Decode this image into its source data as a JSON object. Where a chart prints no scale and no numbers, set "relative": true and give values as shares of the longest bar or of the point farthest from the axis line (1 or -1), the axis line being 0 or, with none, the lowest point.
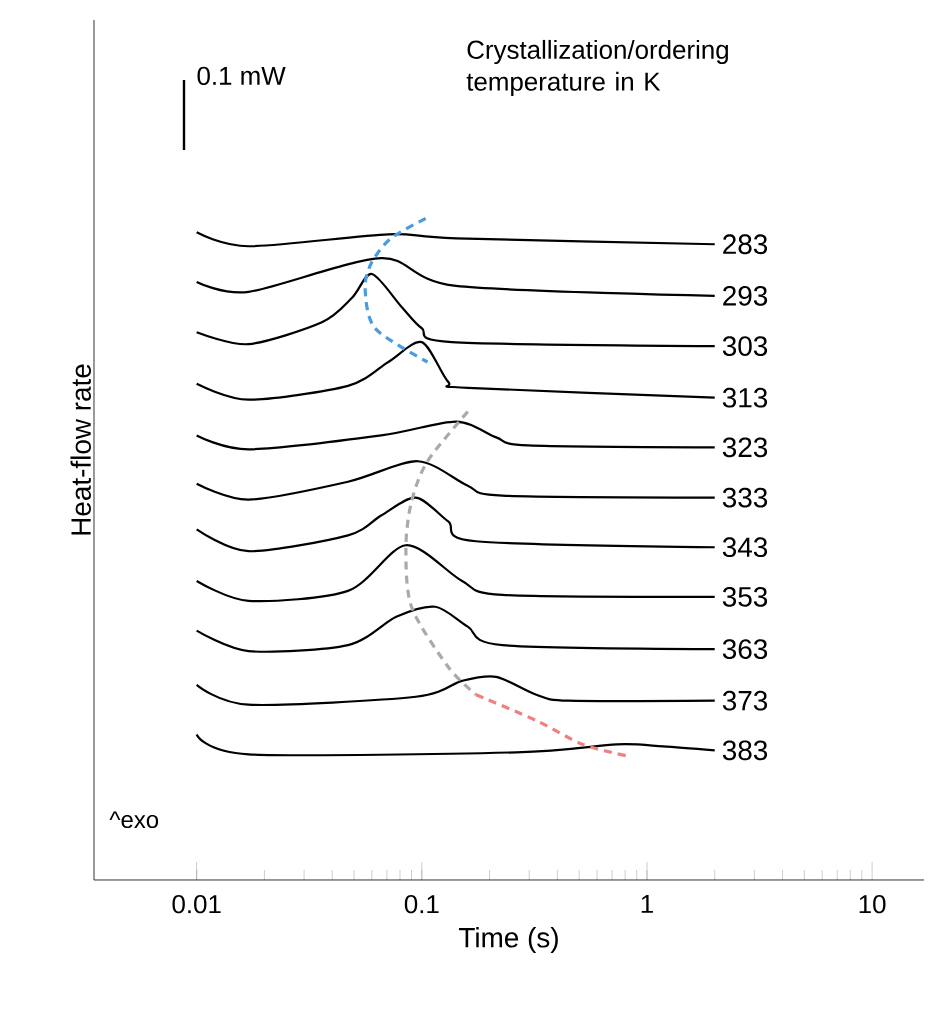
{
  "chart_data": {
    "type": "line",
    "relative": true,
    "xlabel": "Time (s)",
    "ylabel": "Heat-flow rate",
    "log": "x",
    "xlim": [
      0.0035,
      17
    ],
    "xticks": [
      0.01,
      0.1,
      1,
      10
    ],
    "annotations": [
      "0.1 mW",
      "Crystallization/ordering temperature in K",
      "^exo"
    ],
    "series": [
      {
        "name": "283",
        "color": "#000000",
        "x": [
          0.01,
          0.017,
          0.071,
          0.142,
          2
        ],
        "values": [
          0.979,
          0.958,
          0.976,
          0.97,
          0.961
        ]
      },
      {
        "name": "293",
        "color": "#000000",
        "x": [
          0.01,
          0.017,
          0.066,
          0.142,
          2
        ],
        "values": [
          0.904,
          0.889,
          0.94,
          0.898,
          0.883
        ]
      },
      {
        "name": "303",
        "color": "#000000",
        "x": [
          0.01,
          0.017,
          0.036,
          0.049,
          0.06,
          0.081,
          0.1,
          0.136,
          2
        ],
        "values": [
          0.828,
          0.81,
          0.843,
          0.88,
          0.916,
          0.867,
          0.834,
          0.813,
          0.807
        ]
      },
      {
        "name": "313",
        "color": "#000000",
        "x": [
          0.01,
          0.017,
          0.047,
          0.071,
          0.1,
          0.131,
          0.16,
          2
        ],
        "values": [
          0.75,
          0.726,
          0.747,
          0.783,
          0.813,
          0.753,
          0.744,
          0.729
        ]
      },
      {
        "name": "323",
        "color": "#000000",
        "x": [
          0.01,
          0.017,
          0.066,
          0.142,
          0.214,
          0.297,
          2
        ],
        "values": [
          0.672,
          0.651,
          0.672,
          0.693,
          0.669,
          0.657,
          0.654
        ]
      },
      {
        "name": "333",
        "color": "#000000",
        "x": [
          0.01,
          0.017,
          0.047,
          0.096,
          0.16,
          0.228,
          2
        ],
        "values": [
          0.599,
          0.575,
          0.602,
          0.633,
          0.596,
          0.581,
          0.578
        ]
      },
      {
        "name": "343",
        "color": "#000000",
        "x": [
          0.01,
          0.017,
          0.047,
          0.066,
          0.094,
          0.131,
          0.174,
          2
        ],
        "values": [
          0.53,
          0.497,
          0.521,
          0.551,
          0.578,
          0.542,
          0.512,
          0.503
        ]
      },
      {
        "name": "353",
        "color": "#000000",
        "x": [
          0.01,
          0.017,
          0.047,
          0.085,
          0.151,
          0.228,
          2
        ],
        "values": [
          0.452,
          0.422,
          0.437,
          0.506,
          0.452,
          0.431,
          0.428
        ]
      },
      {
        "name": "363",
        "color": "#000000",
        "x": [
          0.01,
          0.017,
          0.047,
          0.077,
          0.115,
          0.16,
          0.228,
          2
        ],
        "values": [
          0.377,
          0.346,
          0.355,
          0.398,
          0.413,
          0.383,
          0.355,
          0.349
        ]
      },
      {
        "name": "373",
        "color": "#000000",
        "x": [
          0.01,
          0.017,
          0.094,
          0.151,
          0.214,
          0.323,
          0.449,
          2
        ],
        "values": [
          0.295,
          0.265,
          0.277,
          0.301,
          0.307,
          0.28,
          0.271,
          0.271
        ]
      },
      {
        "name": "383",
        "color": "#000000",
        "x": [
          0.01,
          0.017,
          0.263,
          0.735,
          1.18,
          2
        ],
        "values": [
          0.22,
          0.19,
          0.193,
          0.205,
          0.202,
          0.196
        ]
      },
      {
        "color": "#4a9be0",
        "line_style": "dashed",
        "x": [
          0.104,
          0.073,
          0.06,
          0.056,
          0.062,
          0.106
        ],
        "values": [
          1.0,
          0.97,
          0.934,
          0.895,
          0.834,
          0.783
        ]
      },
      {
        "color": "#b0a8a8",
        "line_style": "dashed",
        "x": [
          0.16,
          0.106,
          0.09,
          0.085,
          0.09,
          0.131,
          0.174
        ],
        "values": [
          0.708,
          0.633,
          0.572,
          0.503,
          0.413,
          0.322,
          0.28
        ]
      },
      {
        "color": "#f08080",
        "line_style": "dashed",
        "x": [
          0.174,
          0.323,
          0.518,
          0.831
        ],
        "values": [
          0.28,
          0.241,
          0.205,
          0.187
        ]
      }
    ]
  }
}
